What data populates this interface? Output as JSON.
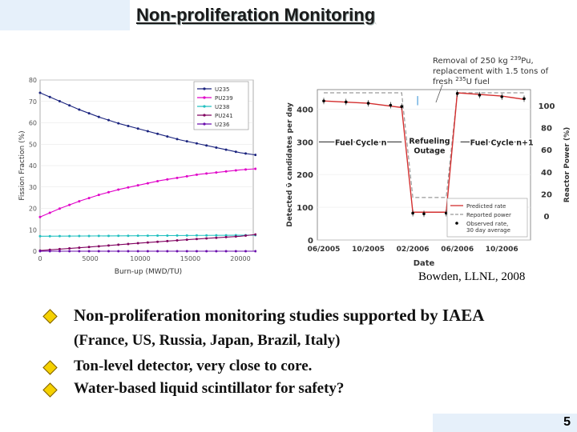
{
  "slide": {
    "title": "Non-proliferation Monitoring",
    "caption": "Bowden, LLNL, 2008",
    "page_number": "5",
    "bullets": [
      {
        "line1": "Non-proliferation monitoring studies supported by IAEA",
        "line2": "(France, US, Russia, Japan, Brazil, Italy)"
      },
      {
        "line1": "Ton-level detector, very close to core."
      },
      {
        "line1": "Water-based liquid scintillator for safety?"
      }
    ]
  },
  "chart_data": [
    {
      "type": "line",
      "xlabel": "Burn-up (MWD/TU)",
      "ylabel": "Fission Fraction (%)",
      "xlim": [
        0,
        20000
      ],
      "ylim": [
        0,
        80
      ],
      "xticks": [
        "0",
        "5000",
        "10000",
        "15000",
        "20000"
      ],
      "yticks": [
        "0",
        "10",
        "20",
        "30",
        "40",
        "50",
        "60",
        "70",
        "80"
      ],
      "legend_position": "top-right",
      "series": [
        {
          "name": "U235",
          "color": "#1a237e",
          "x": [
            0,
            2000,
            4000,
            6000,
            8000,
            10000,
            12000,
            14000,
            16000,
            18000,
            20000,
            21500
          ],
          "values": [
            74,
            70,
            66,
            62.5,
            59.5,
            57,
            54.5,
            52,
            50,
            48,
            46,
            45
          ]
        },
        {
          "name": "PU239",
          "color": "#e000c8",
          "x": [
            0,
            2000,
            4000,
            6000,
            8000,
            10000,
            12000,
            14000,
            16000,
            18000,
            20000,
            21500
          ],
          "values": [
            16,
            20,
            23.5,
            26.5,
            29,
            31,
            33,
            34.5,
            36,
            37,
            38,
            38.5
          ]
        },
        {
          "name": "U238",
          "color": "#20c0c0",
          "x": [
            0,
            21500
          ],
          "values": [
            7,
            7.5
          ]
        },
        {
          "name": "PU241",
          "color": "#800060",
          "x": [
            0,
            5000,
            10000,
            15000,
            20000,
            21500
          ],
          "values": [
            0.3,
            2,
            3.8,
            5.5,
            7,
            7.8
          ]
        },
        {
          "name": "U236",
          "color": "#6a0dad",
          "x": [
            0,
            21500
          ],
          "values": [
            0,
            0
          ]
        }
      ]
    },
    {
      "type": "line",
      "annotation": "Removal of 250 kg ²³⁹Pu, replacement with 1.5 tons of fresh ²³⁵U fuel",
      "xlabel": "Date",
      "ylabel": "Detected ν̄ candidates per day",
      "ylabel_right": "Reactor Power (%)",
      "ylim": [
        0,
        450
      ],
      "yticks": [
        "0",
        "100",
        "200",
        "300",
        "400"
      ],
      "yticks_right": [
        "0",
        "20",
        "40",
        "60",
        "80",
        "100"
      ],
      "xticks": [
        "06/2005",
        "10/2005",
        "02/2006",
        "06/2006",
        "10/2006"
      ],
      "labels": [
        "Fuel Cycle n",
        "Refueling Outage",
        "Fuel Cycle n+1"
      ],
      "legend": [
        "Predicted rate",
        "Reported power",
        "Observed rate, 30 day average"
      ],
      "series": [
        {
          "name": "Predicted rate",
          "color": "#d32f2f",
          "x": [
            "06/2005",
            "10/2005",
            "01/2006",
            "02/2006",
            "05/2006",
            "06/2006",
            "10/2006",
            "12/2006"
          ],
          "values": [
            425,
            418,
            405,
            85,
            85,
            450,
            440,
            430
          ]
        },
        {
          "name": "Reported power",
          "color": "#999999",
          "x": [
            "06/2005",
            "01/2006",
            "02/2006",
            "05/2006",
            "06/2006",
            "12/2006"
          ],
          "values": [
            100,
            100,
            0,
            0,
            100,
            100
          ]
        },
        {
          "name": "Observed rate, 30 day average",
          "color": "#000000",
          "x": [
            "06/2005",
            "08/2005",
            "10/2005",
            "12/2005",
            "01/2006",
            "02/2006",
            "03/2006",
            "05/2006",
            "06/2006",
            "08/2006",
            "10/2006",
            "12/2006"
          ],
          "values": [
            425,
            422,
            418,
            412,
            408,
            82,
            80,
            82,
            448,
            443,
            438,
            432
          ]
        }
      ]
    }
  ]
}
